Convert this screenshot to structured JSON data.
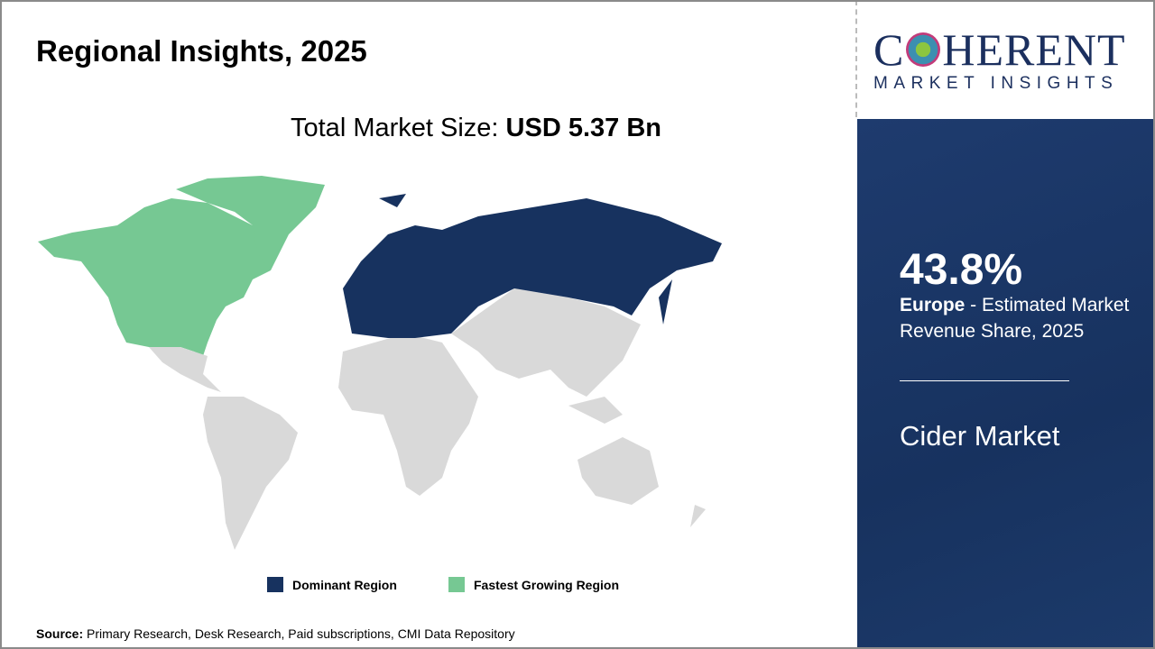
{
  "title": "Regional Insights, 2025",
  "total_label": "Total Market Size: ",
  "total_value": "USD 5.37 Bn",
  "logo": {
    "main": "COHERENT",
    "sub": "MARKET INSIGHTS"
  },
  "panel": {
    "share": "43.8%",
    "region": "Europe",
    "desc": " - Estimated Market Revenue Share, 2025",
    "market": "Cider Market"
  },
  "legend": [
    {
      "label": "Dominant Region",
      "color": "#17325f"
    },
    {
      "label": "Fastest Growing Region",
      "color": "#76c893"
    }
  ],
  "colors": {
    "other": "#d9d9d9"
  },
  "source": {
    "label": "Source:",
    "text": " Primary Research, Desk Research, Paid subscriptions, CMI Data Repository"
  }
}
